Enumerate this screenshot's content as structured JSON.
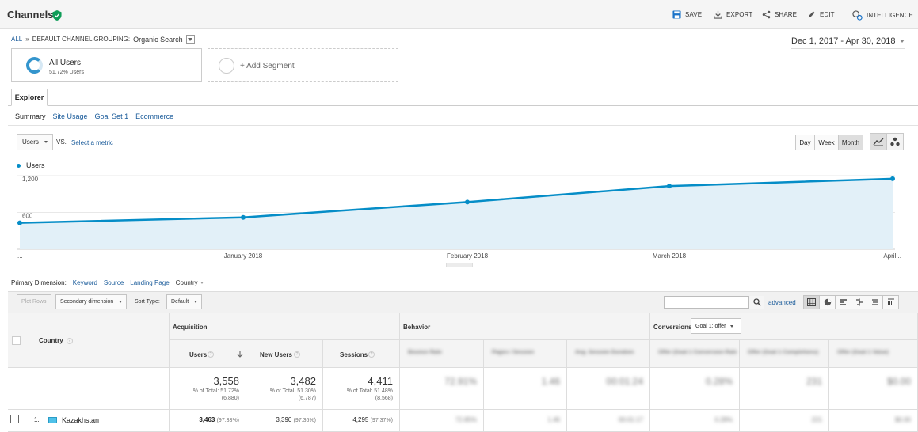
{
  "header": {
    "title": "Channels",
    "tools": [
      {
        "label": "SAVE",
        "icon": "save-icon"
      },
      {
        "label": "EXPORT",
        "icon": "export-icon"
      },
      {
        "label": "SHARE",
        "icon": "share-icon"
      },
      {
        "label": "EDIT",
        "icon": "edit-icon"
      },
      {
        "label": "INTELLIGENCE",
        "icon": "intelligence-icon"
      }
    ]
  },
  "breadcrumb": {
    "root": "ALL",
    "separator": "»",
    "grouping": "DEFAULT CHANNEL GROUPING:",
    "value": "Organic Search"
  },
  "date_range": "Dec 1, 2017 - Apr 30, 2018",
  "segments": {
    "active": {
      "name": "All Users",
      "sub": "51.72% Users"
    },
    "add_label": "+ Add Segment"
  },
  "tabs": {
    "explorer": "Explorer",
    "subtabs": [
      "Summary",
      "Site Usage",
      "Goal Set 1",
      "Ecommerce"
    ]
  },
  "metric": {
    "selected": "Users",
    "vs": "VS.",
    "select_metric": "Select a metric"
  },
  "periods": [
    "Day",
    "Week",
    "Month"
  ],
  "period_active": "Month",
  "chart_data": {
    "type": "area",
    "x": [
      "...",
      "January 2018",
      "February 2018",
      "March 2018",
      "April..."
    ],
    "series": [
      {
        "name": "Users",
        "values": [
          430,
          520,
          770,
          1030,
          1150
        ]
      }
    ],
    "y_ticks": [
      "1,200",
      "600"
    ],
    "ylim": [
      0,
      1200
    ],
    "color": "#058dc7",
    "fill": "#e2f0f8",
    "grid": true
  },
  "primary_dimension": {
    "label": "Primary Dimension:",
    "options": [
      "Keyword",
      "Source",
      "Landing Page"
    ],
    "current": "Country"
  },
  "controls": {
    "plot_rows": "Plot Rows",
    "secondary": "Secondary dimension",
    "sort_type_label": "Sort Type:",
    "sort_type": "Default",
    "advanced": "advanced"
  },
  "table": {
    "col_country": "Country",
    "group_acquisition": "Acquisition",
    "group_behavior": "Behavior",
    "group_conversions": "Conversions",
    "goal_select": "Goal 1: offer",
    "cols": [
      "Users",
      "New Users",
      "Sessions"
    ],
    "totals": [
      {
        "value": "3,558",
        "pct": "% of Total: 51.72%",
        "of": "(6,880)"
      },
      {
        "value": "3,482",
        "pct": "% of Total: 51.30%",
        "of": "(6,787)"
      },
      {
        "value": "4,411",
        "pct": "% of Total: 51.48%",
        "of": "(8,568)"
      }
    ],
    "rows": [
      {
        "index": "1.",
        "country": "Kazakhstan",
        "users": "3,463",
        "users_pct": "(97.33%)",
        "new": "3,390",
        "new_pct": "(97.36%)",
        "sessions": "4,295",
        "sessions_pct": "(97.37%)"
      }
    ],
    "blurred_headers": [
      "Bounce Rate",
      "Pages / Session",
      "Avg. Session Duration",
      "Offer (Goal 1 Conversion Rate)",
      "Offer (Goal 1 Completions)",
      "Offer (Goal 1 Value)"
    ],
    "blurred_totals": [
      "72.91%",
      "1.46",
      "00:01:24",
      "0.28%",
      "231",
      "$0.00"
    ],
    "blurred_row": [
      "72.85%",
      "1.46",
      "00:01:17",
      "0.28%",
      "221",
      "$0.00"
    ]
  }
}
